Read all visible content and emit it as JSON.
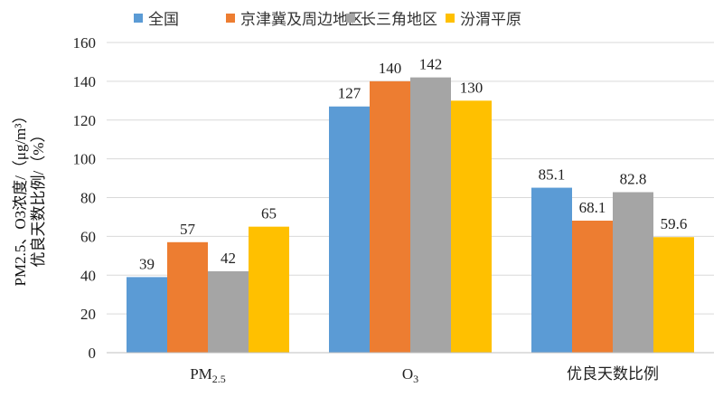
{
  "chart_data": {
    "type": "bar",
    "categories": [
      "PM2.5",
      "O3",
      "优良天数比例"
    ],
    "series": [
      {
        "name": "全国",
        "color": "#5B9BD5",
        "values": [
          39,
          127,
          85.1
        ]
      },
      {
        "name": "京津冀及周边地区",
        "color": "#ED7D31",
        "values": [
          57,
          140,
          68.1
        ]
      },
      {
        "name": "长三角地区",
        "color": "#A5A5A5",
        "values": [
          42,
          142,
          82.8
        ]
      },
      {
        "name": "汾渭平原",
        "color": "#FFC000",
        "values": [
          65,
          130,
          59.6
        ]
      }
    ],
    "ylabel_line1": "PM2.5、O3浓度/（μg/m³）",
    "ylabel_line2": "优良天数比例/（%）",
    "ylim": [
      0,
      160
    ],
    "yticks": [
      0,
      20,
      40,
      60,
      80,
      100,
      120,
      140,
      160
    ],
    "grid": true,
    "legend": "top"
  }
}
